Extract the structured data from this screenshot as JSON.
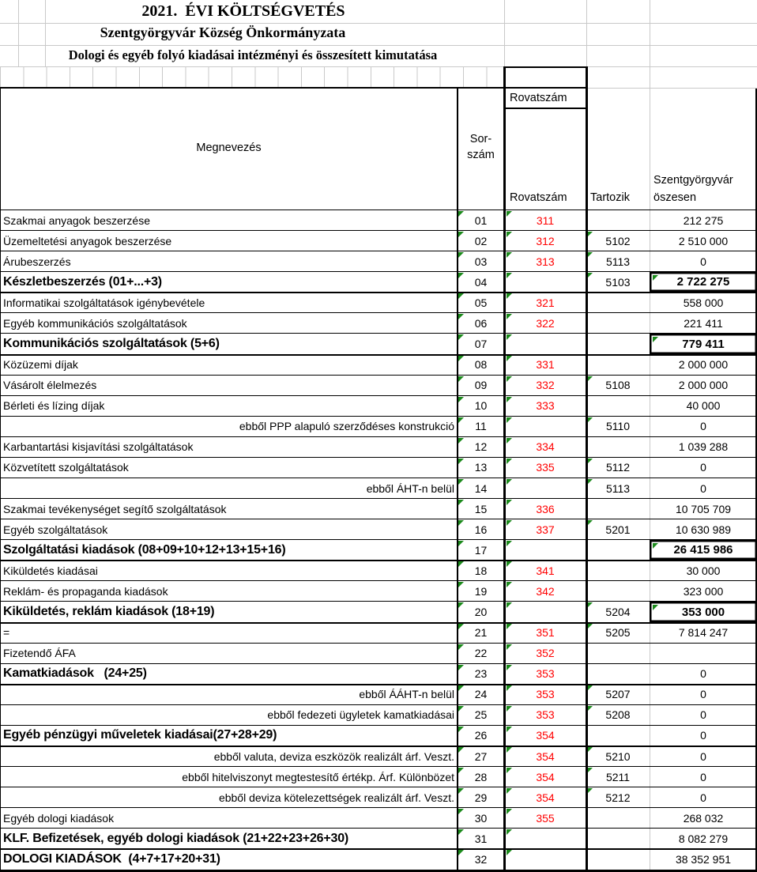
{
  "titles": {
    "line1": "2021.  ÉVI KÖLTSÉGVETÉS",
    "line2": "Szentgyörgyvár Község Önkormányzata",
    "line3": "Dologi és egyéb folyó kiadásai intézményi és összesített kimutatása"
  },
  "header": {
    "megnevezes": "Megnevezés",
    "sorszam_line1": "Sor-",
    "sorszam_line2": "szám",
    "rovatszam_top": "Rovatszám",
    "rovatszam_bottom": "Rovatszám",
    "tartozik": "Tartozik",
    "osszesen_line1": "Szentgyörgyvár",
    "osszesen_line2": "öszesen"
  },
  "colors": {
    "rovatszam_red": "#ff0000",
    "error_indicator_green": "#1b8a1b",
    "gridline_gray": "#c9c9c9",
    "border_black": "#000000"
  },
  "table": {
    "rows": [
      {
        "name": "Szakmai anyagok beszerzése",
        "align": "left",
        "bold": false,
        "sorszam": "01",
        "rovatszam": "311",
        "tartozik": "",
        "osszesen": "212 275",
        "boxed": false
      },
      {
        "name": "Üzemeltetési anyagok beszerzése",
        "align": "left",
        "bold": false,
        "sorszam": "02",
        "rovatszam": "312",
        "tartozik": "5102",
        "osszesen": "2 510 000",
        "boxed": false
      },
      {
        "name": "Árubeszerzés",
        "align": "left",
        "bold": false,
        "sorszam": "03",
        "rovatszam": "313",
        "tartozik": "5113",
        "osszesen": "0",
        "boxed": false
      },
      {
        "name": "Készletbeszerzés (01+...+3)",
        "align": "left",
        "bold": true,
        "sorszam": "04",
        "rovatszam": "",
        "tartozik": "5103",
        "osszesen": "2 722 275",
        "boxed": true
      },
      {
        "name": "Informatikai szolgáltatások igénybevétele",
        "align": "left",
        "bold": false,
        "sorszam": "05",
        "rovatszam": "321",
        "tartozik": "",
        "osszesen": "558 000",
        "boxed": false
      },
      {
        "name": "Egyéb kommunikációs szolgáltatások",
        "align": "left",
        "bold": false,
        "sorszam": "06",
        "rovatszam": "322",
        "tartozik": "",
        "osszesen": "221 411",
        "boxed": false
      },
      {
        "name": "Kommunikációs szolgáltatások (5+6)",
        "align": "left",
        "bold": true,
        "sorszam": "07",
        "rovatszam": "",
        "tartozik": "",
        "osszesen": "779 411",
        "boxed": true
      },
      {
        "name": "Közüzemi díjak",
        "align": "left",
        "bold": false,
        "sorszam": "08",
        "rovatszam": "331",
        "tartozik": "",
        "osszesen": "2 000 000",
        "boxed": false
      },
      {
        "name": "Vásárolt élelmezés",
        "align": "left",
        "bold": false,
        "sorszam": "09",
        "rovatszam": "332",
        "tartozik": "5108",
        "osszesen": "2 000 000",
        "boxed": false
      },
      {
        "name": "Bérleti és lízing díjak",
        "align": "left",
        "bold": false,
        "sorszam": "10",
        "rovatszam": "333",
        "tartozik": "",
        "osszesen": "40 000",
        "boxed": false
      },
      {
        "name": "ebből PPP alapuló szerződéses konstrukció",
        "align": "right",
        "bold": false,
        "sorszam": "11",
        "rovatszam": "",
        "tartozik": "5110",
        "osszesen": "0",
        "boxed": false
      },
      {
        "name": "Karbantartási kisjavítási szolgáltatások",
        "align": "left",
        "bold": false,
        "sorszam": "12",
        "rovatszam": "334",
        "tartozik": "",
        "osszesen": "1 039 288",
        "boxed": false
      },
      {
        "name": "Közvetített szolgáltatások",
        "align": "left",
        "bold": false,
        "sorszam": "13",
        "rovatszam": "335",
        "tartozik": "5112",
        "osszesen": "0",
        "boxed": false
      },
      {
        "name": "ebből ÁHT-n belül",
        "align": "right",
        "bold": false,
        "sorszam": "14",
        "rovatszam": "",
        "tartozik": "5113",
        "osszesen": "0",
        "boxed": false
      },
      {
        "name": "Szakmai tevékenységet segítő szolgáltatások",
        "align": "left",
        "bold": false,
        "sorszam": "15",
        "rovatszam": "336",
        "tartozik": "",
        "osszesen": "10 705 709",
        "boxed": false
      },
      {
        "name": "Egyéb szolgáltatások",
        "align": "left",
        "bold": false,
        "sorszam": "16",
        "rovatszam": "337",
        "tartozik": "5201",
        "osszesen": "10 630 989",
        "boxed": false
      },
      {
        "name": "Szolgáltatási kiadások (08+09+10+12+13+15+16)",
        "align": "left",
        "bold": true,
        "sorszam": "17",
        "rovatszam": "",
        "tartozik": "",
        "osszesen": "26 415 986",
        "boxed": true
      },
      {
        "name": "Kiküldetés kiadásai",
        "align": "left",
        "bold": false,
        "sorszam": "18",
        "rovatszam": "341",
        "tartozik": "",
        "osszesen": "30 000",
        "boxed": false
      },
      {
        "name": "Reklám- és propaganda kiadások",
        "align": "left",
        "bold": false,
        "sorszam": "19",
        "rovatszam": "342",
        "tartozik": "",
        "osszesen": "323 000",
        "boxed": false
      },
      {
        "name": "Kiküldetés, reklám kiadások (18+19)",
        "align": "left",
        "bold": true,
        "sorszam": "20",
        "rovatszam": "",
        "tartozik": "5204",
        "osszesen": "353 000",
        "boxed": true
      },
      {
        "name": "=",
        "align": "left",
        "bold": false,
        "sorszam": "21",
        "rovatszam": "351",
        "tartozik": "5205",
        "osszesen": "7 814 247",
        "boxed": false
      },
      {
        "name": "Fizetendő ÁFA",
        "align": "left",
        "bold": false,
        "sorszam": "22",
        "rovatszam": "352",
        "tartozik": "",
        "osszesen": "",
        "boxed": false
      },
      {
        "name": "Kamatkiadások   (24+25)",
        "align": "left",
        "bold": true,
        "sorszam": "23",
        "rovatszam": "353",
        "tartozik": "",
        "osszesen": "0",
        "boxed": false
      },
      {
        "name": "ebből ÁÁHT-n belül",
        "align": "right",
        "bold": false,
        "sorszam": "24",
        "rovatszam": "353",
        "tartozik": "5207",
        "osszesen": "0",
        "boxed": false
      },
      {
        "name": "ebből fedezeti ügyletek kamatkiadásai",
        "align": "right",
        "bold": false,
        "sorszam": "25",
        "rovatszam": "353",
        "tartozik": "5208",
        "osszesen": "0",
        "boxed": false
      },
      {
        "name": "Egyéb pénzügyi műveletek kiadásai(27+28+29)",
        "align": "left",
        "bold": true,
        "sorszam": "26",
        "rovatszam": "354",
        "tartozik": "",
        "osszesen": "0",
        "boxed": false
      },
      {
        "name": "ebből valuta, deviza eszközök realizált árf. Veszt.",
        "align": "right",
        "bold": false,
        "sorszam": "27",
        "rovatszam": "354",
        "tartozik": "5210",
        "osszesen": "0",
        "boxed": false
      },
      {
        "name": "ebből hitelviszonyt megtestesítő értékp. Árf. Különbözet",
        "align": "right",
        "bold": false,
        "sorszam": "28",
        "rovatszam": "354",
        "tartozik": "5211",
        "osszesen": "0",
        "boxed": false
      },
      {
        "name": "ebből deviza kötelezettségek realizált árf. Veszt.",
        "align": "right",
        "bold": false,
        "sorszam": "29",
        "rovatszam": "354",
        "tartozik": "5212",
        "osszesen": "0",
        "boxed": false
      },
      {
        "name": "Egyéb dologi kiadások",
        "align": "left",
        "bold": false,
        "sorszam": "30",
        "rovatszam": "355",
        "tartozik": "",
        "osszesen": "268 032",
        "boxed": false
      },
      {
        "name": "KLF. Befizetések, egyéb dologi kiadások (21+22+23+26+30)",
        "align": "left",
        "bold": true,
        "sorszam": "31",
        "rovatszam": "",
        "tartozik": "",
        "osszesen": "8 082 279",
        "boxed": false
      },
      {
        "name": "DOLOGI KIADÁSOK  (4+7+17+20+31)",
        "align": "left",
        "bold": true,
        "sorszam": "32",
        "rovatszam": "",
        "tartozik": "",
        "osszesen": "38 352 951",
        "boxed": false
      }
    ]
  }
}
